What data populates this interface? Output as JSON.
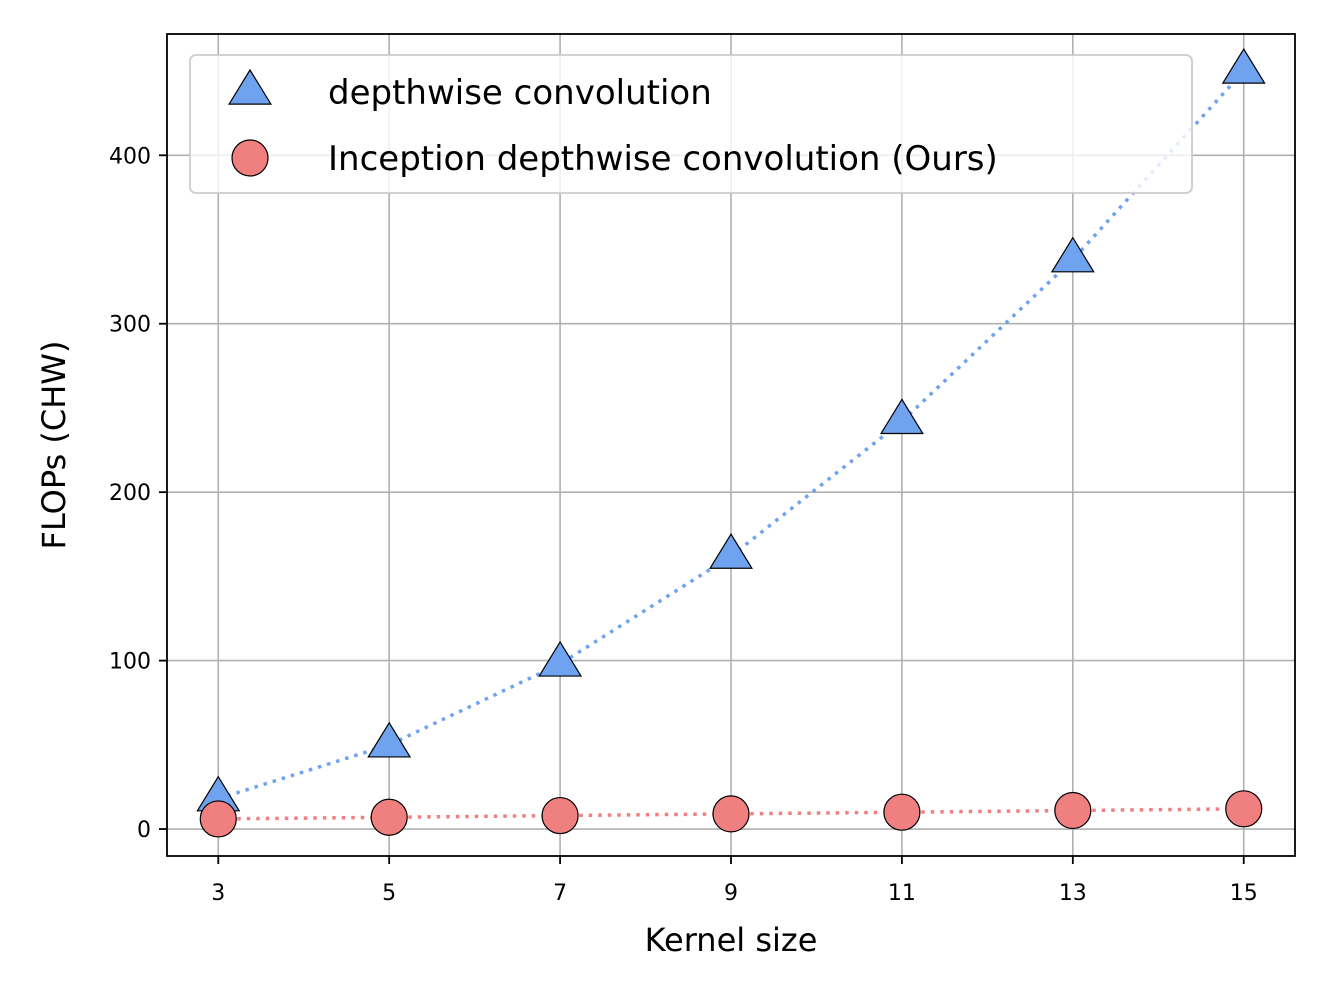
{
  "chart_data": {
    "type": "line",
    "title": "",
    "xlabel": "Kernel size",
    "ylabel": "FLOPs (CHW)",
    "x": [
      3,
      5,
      7,
      9,
      11,
      13,
      15
    ],
    "xticks": [
      "3",
      "5",
      "7",
      "9",
      "11",
      "13",
      "15"
    ],
    "yticks": [
      "0",
      "100",
      "200",
      "300",
      "400"
    ],
    "xlim": [
      2.4,
      15.6
    ],
    "ylim": [
      -16,
      472
    ],
    "grid": true,
    "legend_position": "top-left",
    "series": [
      {
        "name": "depthwise convolution",
        "marker": "triangle",
        "color": "#6fa3ef",
        "line_style": "dotted",
        "values": [
          18,
          50,
          98,
          162,
          242,
          338,
          450
        ]
      },
      {
        "name": "Inception depthwise convolution (Ours)",
        "marker": "circle",
        "color": "#f08080",
        "line_style": "dotted",
        "values": [
          6,
          7,
          8,
          9,
          10,
          11,
          12
        ]
      }
    ]
  }
}
